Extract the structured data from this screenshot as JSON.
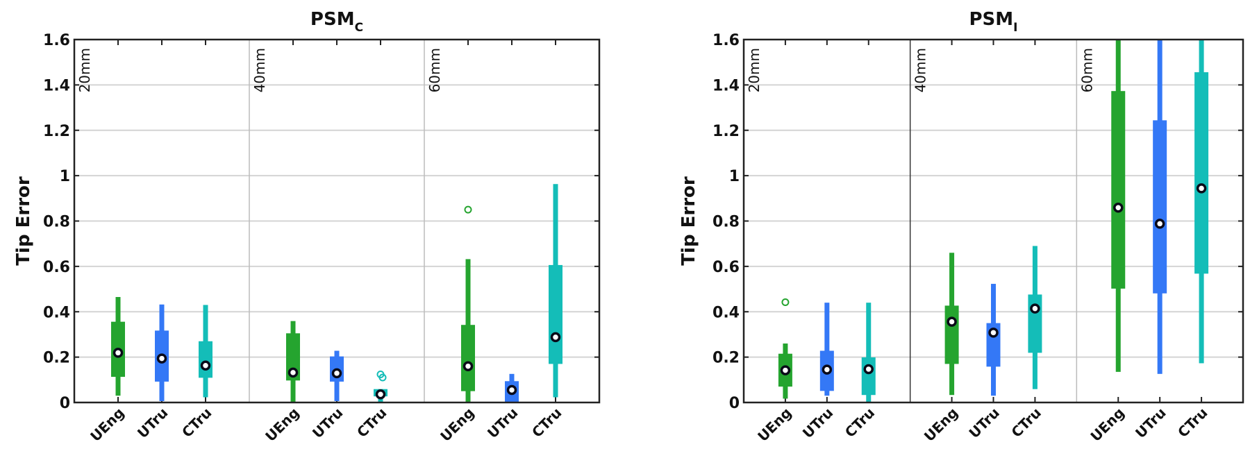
{
  "chart_data": [
    {
      "type": "boxplot",
      "title": "PSM",
      "title_subscript": "C",
      "ylabel": "Tip Error",
      "ylim": [
        0,
        1.6
      ],
      "yticks": [
        "0",
        "0.2",
        "0.4",
        "0.6",
        "0.8",
        "1",
        "1.2",
        "1.4",
        "1.6"
      ],
      "grid": true,
      "groups": [
        "20mm",
        "40mm",
        "60mm"
      ],
      "categories": [
        "UEng",
        "UTru",
        "CTru"
      ],
      "colors": {
        "UEng": "#25a42f",
        "UTru": "#3478f6",
        "CTru": "#14bdb8"
      },
      "boxes": [
        {
          "group": "20mm",
          "category": "UEng",
          "whisker_low": 0.03,
          "q1": 0.113,
          "median": 0.219,
          "q3": 0.356,
          "whisker_high": 0.465,
          "outliers": []
        },
        {
          "group": "20mm",
          "category": "UTru",
          "whisker_low": 0.006,
          "q1": 0.092,
          "median": 0.194,
          "q3": 0.317,
          "whisker_high": 0.432,
          "outliers": []
        },
        {
          "group": "20mm",
          "category": "CTru",
          "whisker_low": 0.023,
          "q1": 0.109,
          "median": 0.163,
          "q3": 0.27,
          "whisker_high": 0.43,
          "outliers": []
        },
        {
          "group": "40mm",
          "category": "UEng",
          "whisker_low": 0.0,
          "q1": 0.097,
          "median": 0.132,
          "q3": 0.305,
          "whisker_high": 0.359,
          "outliers": []
        },
        {
          "group": "40mm",
          "category": "UTru",
          "whisker_low": 0.006,
          "q1": 0.092,
          "median": 0.129,
          "q3": 0.203,
          "whisker_high": 0.228,
          "outliers": []
        },
        {
          "group": "40mm",
          "category": "CTru",
          "whisker_low": 0.0,
          "q1": 0.027,
          "median": 0.036,
          "q3": 0.059,
          "whisker_high": 0.059,
          "outliers": [
            0.124,
            0.11
          ]
        },
        {
          "group": "60mm",
          "category": "UEng",
          "whisker_low": 0.0,
          "q1": 0.05,
          "median": 0.16,
          "q3": 0.342,
          "whisker_high": 0.632,
          "outliers": [
            0.85
          ]
        },
        {
          "group": "60mm",
          "category": "UTru",
          "whisker_low": 0.0,
          "q1": 0.0,
          "median": 0.055,
          "q3": 0.094,
          "whisker_high": 0.126,
          "outliers": []
        },
        {
          "group": "60mm",
          "category": "CTru",
          "whisker_low": 0.023,
          "q1": 0.17,
          "median": 0.288,
          "q3": 0.606,
          "whisker_high": 0.963,
          "outliers": []
        }
      ]
    },
    {
      "type": "boxplot",
      "title": "PSM",
      "title_subscript": "I",
      "ylabel": "Tip Error",
      "ylim": [
        0,
        1.6
      ],
      "yticks": [
        "0",
        "0.2",
        "0.4",
        "0.6",
        "0.8",
        "1",
        "1.2",
        "1.4",
        "1.6"
      ],
      "grid": true,
      "groups": [
        "20mm",
        "40mm",
        "60mm"
      ],
      "categories": [
        "UEng",
        "UTru",
        "CTru"
      ],
      "colors": {
        "UEng": "#25a42f",
        "UTru": "#3478f6",
        "CTru": "#14bdb8"
      },
      "boxes": [
        {
          "group": "20mm",
          "category": "UEng",
          "whisker_low": 0.017,
          "q1": 0.07,
          "median": 0.142,
          "q3": 0.215,
          "whisker_high": 0.26,
          "outliers": [
            0.442
          ]
        },
        {
          "group": "20mm",
          "category": "UTru",
          "whisker_low": 0.03,
          "q1": 0.051,
          "median": 0.145,
          "q3": 0.228,
          "whisker_high": 0.44,
          "outliers": []
        },
        {
          "group": "20mm",
          "category": "CTru",
          "whisker_low": 0.0,
          "q1": 0.033,
          "median": 0.147,
          "q3": 0.199,
          "whisker_high": 0.44,
          "outliers": []
        },
        {
          "group": "40mm",
          "category": "UEng",
          "whisker_low": 0.033,
          "q1": 0.17,
          "median": 0.356,
          "q3": 0.427,
          "whisker_high": 0.66,
          "outliers": []
        },
        {
          "group": "40mm",
          "category": "UTru",
          "whisker_low": 0.03,
          "q1": 0.158,
          "median": 0.308,
          "q3": 0.35,
          "whisker_high": 0.523,
          "outliers": []
        },
        {
          "group": "40mm",
          "category": "CTru",
          "whisker_low": 0.059,
          "q1": 0.219,
          "median": 0.414,
          "q3": 0.476,
          "whisker_high": 0.69,
          "outliers": []
        },
        {
          "group": "60mm",
          "category": "UEng",
          "whisker_low": 0.135,
          "q1": 0.502,
          "median": 0.859,
          "q3": 1.373,
          "whisker_high": 1.6,
          "outliers": []
        },
        {
          "group": "60mm",
          "category": "UTru",
          "whisker_low": 0.126,
          "q1": 0.481,
          "median": 0.788,
          "q3": 1.244,
          "whisker_high": 1.6,
          "outliers": []
        },
        {
          "group": "60mm",
          "category": "CTru",
          "whisker_low": 0.173,
          "q1": 0.568,
          "median": 0.944,
          "q3": 1.456,
          "whisker_high": 1.6,
          "outliers": []
        }
      ]
    }
  ]
}
